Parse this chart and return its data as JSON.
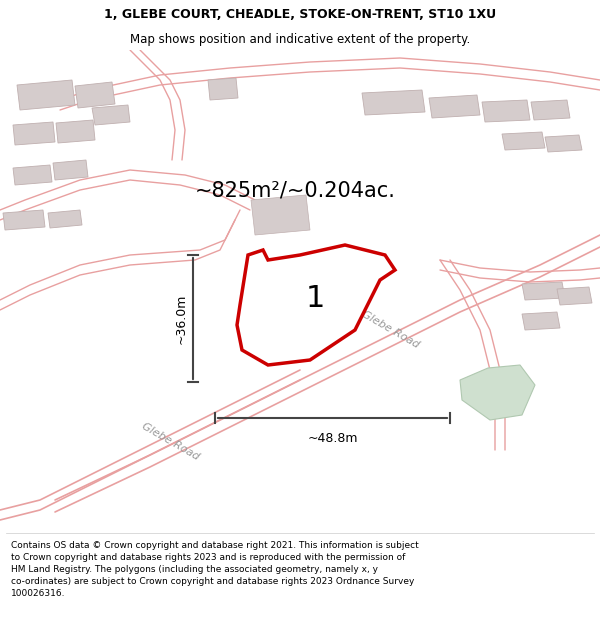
{
  "title_line1": "1, GLEBE COURT, CHEADLE, STOKE-ON-TRENT, ST10 1XU",
  "title_line2": "Map shows position and indicative extent of the property.",
  "area_label": "~825m²/~0.204ac.",
  "plot_number": "1",
  "width_label": "~48.8m",
  "height_label": "~36.0m",
  "footer_text": "Contains OS data © Crown copyright and database right 2021. This information is subject to Crown copyright and database rights 2023 and is reproduced with the permission of HM Land Registry. The polygons (including the associated geometry, namely x, y co-ordinates) are subject to Crown copyright and database rights 2023 Ordnance Survey 100026316.",
  "map_bg": "#f7f2f2",
  "building_color": "#d5cccc",
  "building_edge": "#c0b0b0",
  "road_line_color": "#e8a0a0",
  "plot_fill": "#ffffff",
  "plot_edge_color": "#cc0000",
  "green_area_color": "#cfe0cf",
  "road_label_color": "#999999",
  "dim_color": "#444444",
  "title_fontsize": 9,
  "subtitle_fontsize": 8.5,
  "area_fontsize": 15,
  "plot_num_fontsize": 22,
  "dim_fontsize": 9,
  "road_label_fontsize": 8,
  "footer_fontsize": 6.5
}
